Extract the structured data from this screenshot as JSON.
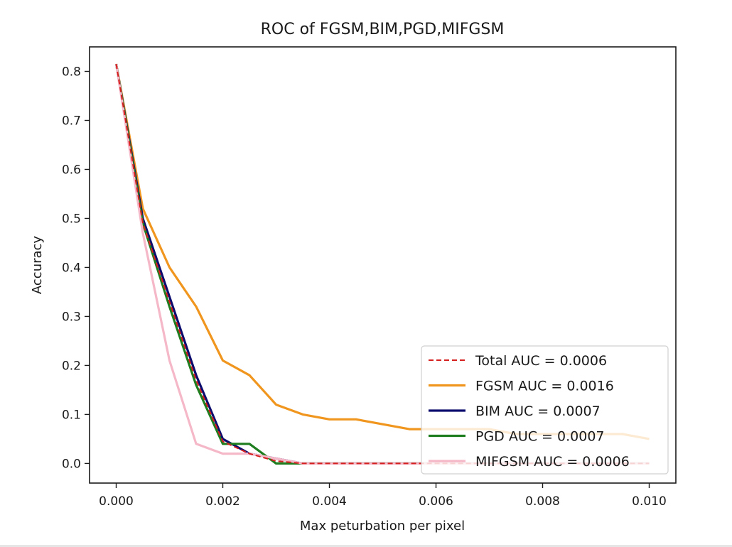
{
  "chart_data": {
    "type": "line",
    "title": "ROC of FGSM,BIM,PGD,MIFGSM",
    "xlabel": "Max peturbation per pixel",
    "ylabel": "Accuracy",
    "xlim": [
      -0.0005,
      0.0105
    ],
    "ylim": [
      -0.04,
      0.85
    ],
    "xticks": [
      0.0,
      0.002,
      0.004,
      0.006,
      0.008,
      0.01
    ],
    "xtick_labels": [
      "0.000",
      "0.002",
      "0.004",
      "0.006",
      "0.008",
      "0.010"
    ],
    "yticks": [
      0.0,
      0.1,
      0.2,
      0.3,
      0.4,
      0.5,
      0.6,
      0.7,
      0.8
    ],
    "ytick_labels": [
      "0.0",
      "0.1",
      "0.2",
      "0.3",
      "0.4",
      "0.5",
      "0.6",
      "0.7",
      "0.8"
    ],
    "grid": false,
    "legend_position": "lower-right",
    "x": [
      0.0,
      0.0005,
      0.001,
      0.0015,
      0.002,
      0.0025,
      0.003,
      0.0035,
      0.004,
      0.0045,
      0.005,
      0.0055,
      0.006,
      0.0065,
      0.007,
      0.0075,
      0.008,
      0.0085,
      0.009,
      0.0095,
      0.01
    ],
    "series": [
      {
        "name": "Total AUC = 0.0006",
        "color": "#d62020",
        "style": "dashed",
        "values": [
          0.815,
          0.49,
          0.33,
          0.17,
          0.045,
          0.02,
          0.005,
          0.0,
          0.0,
          0.0,
          0.0,
          0.0,
          0.0,
          0.0,
          0.0,
          0.0,
          0.0,
          0.0,
          0.0,
          0.0,
          0.0
        ]
      },
      {
        "name": "FGSM AUC = 0.0016",
        "color": "#f0961e",
        "style": "solid",
        "values": [
          0.815,
          0.52,
          0.4,
          0.32,
          0.21,
          0.18,
          0.12,
          0.1,
          0.09,
          0.09,
          0.08,
          0.07,
          0.07,
          0.07,
          0.07,
          0.06,
          0.06,
          0.06,
          0.06,
          0.06,
          0.05
        ]
      },
      {
        "name": "BIM AUC = 0.0007",
        "color": "#0c0c6e",
        "style": "solid",
        "values": [
          0.815,
          0.5,
          0.34,
          0.18,
          0.05,
          0.02,
          0.01,
          0.0,
          0.0,
          0.0,
          0.0,
          0.0,
          0.0,
          0.0,
          0.0,
          0.0,
          0.0,
          0.0,
          0.0,
          0.0,
          0.0
        ]
      },
      {
        "name": "PGD AUC = 0.0007",
        "color": "#1e7d1e",
        "style": "solid",
        "values": [
          0.815,
          0.49,
          0.32,
          0.16,
          0.04,
          0.04,
          0.0,
          0.0,
          0.0,
          0.0,
          0.0,
          0.0,
          0.0,
          0.0,
          0.0,
          0.0,
          0.0,
          0.0,
          0.0,
          0.0,
          0.0
        ]
      },
      {
        "name": "MIFGSM AUC = 0.0006",
        "color": "#f5b8c8",
        "style": "solid",
        "values": [
          0.815,
          0.47,
          0.21,
          0.04,
          0.02,
          0.02,
          0.01,
          0.0,
          0.0,
          0.0,
          0.0,
          0.0,
          0.0,
          0.0,
          0.0,
          0.0,
          0.0,
          0.0,
          0.0,
          0.0,
          0.0
        ]
      }
    ]
  }
}
